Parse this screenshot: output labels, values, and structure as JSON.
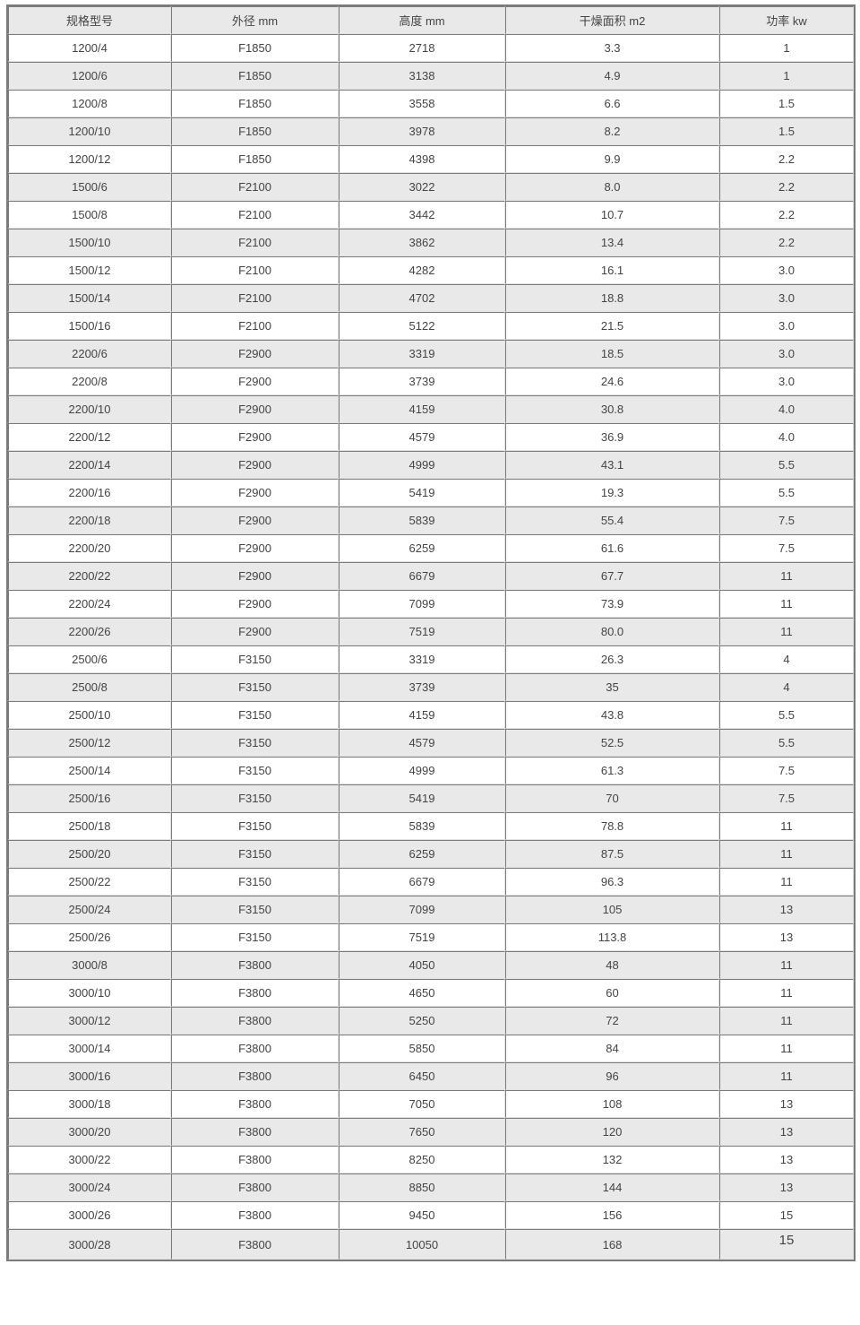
{
  "table": {
    "columns": [
      {
        "key": "model",
        "label": "规格型号"
      },
      {
        "key": "od",
        "label": "外径 mm"
      },
      {
        "key": "height",
        "label": "高度 mm"
      },
      {
        "key": "area",
        "label": "干燥面积 m2"
      },
      {
        "key": "power",
        "label": "功率 kw"
      }
    ],
    "rows": [
      [
        "1200/4",
        "F1850",
        "2718",
        "3.3",
        "1"
      ],
      [
        "1200/6",
        "F1850",
        "3138",
        "4.9",
        "1"
      ],
      [
        "1200/8",
        "F1850",
        "3558",
        "6.6",
        "1.5"
      ],
      [
        "1200/10",
        "F1850",
        "3978",
        "8.2",
        "1.5"
      ],
      [
        "1200/12",
        "F1850",
        "4398",
        "9.9",
        "2.2"
      ],
      [
        "1500/6",
        "F2100",
        "3022",
        "8.0",
        "2.2"
      ],
      [
        "1500/8",
        "F2100",
        "3442",
        "10.7",
        "2.2"
      ],
      [
        "1500/10",
        "F2100",
        "3862",
        "13.4",
        "2.2"
      ],
      [
        "1500/12",
        "F2100",
        "4282",
        "16.1",
        "3.0"
      ],
      [
        "1500/14",
        "F2100",
        "4702",
        "18.8",
        "3.0"
      ],
      [
        "1500/16",
        "F2100",
        "5122",
        "21.5",
        "3.0"
      ],
      [
        "2200/6",
        "F2900",
        "3319",
        "18.5",
        "3.0"
      ],
      [
        "2200/8",
        "F2900",
        "3739",
        "24.6",
        "3.0"
      ],
      [
        "2200/10",
        "F2900",
        "4159",
        "30.8",
        "4.0"
      ],
      [
        "2200/12",
        "F2900",
        "4579",
        "36.9",
        "4.0"
      ],
      [
        "2200/14",
        "F2900",
        "4999",
        "43.1",
        "5.5"
      ],
      [
        "2200/16",
        "F2900",
        "5419",
        "19.3",
        "5.5"
      ],
      [
        "2200/18",
        "F2900",
        "5839",
        "55.4",
        "7.5"
      ],
      [
        "2200/20",
        "F2900",
        "6259",
        "61.6",
        "7.5"
      ],
      [
        "2200/22",
        "F2900",
        "6679",
        "67.7",
        "11"
      ],
      [
        "2200/24",
        "F2900",
        "7099",
        "73.9",
        "11"
      ],
      [
        "2200/26",
        "F2900",
        "7519",
        "80.0",
        "11"
      ],
      [
        "2500/6",
        "F3150",
        "3319",
        "26.3",
        "4"
      ],
      [
        "2500/8",
        "F3150",
        "3739",
        "35",
        "4"
      ],
      [
        "2500/10",
        "F3150",
        "4159",
        "43.8",
        "5.5"
      ],
      [
        "2500/12",
        "F3150",
        "4579",
        "52.5",
        "5.5"
      ],
      [
        "2500/14",
        "F3150",
        "4999",
        "61.3",
        "7.5"
      ],
      [
        "2500/16",
        "F3150",
        "5419",
        "70",
        "7.5"
      ],
      [
        "2500/18",
        "F3150",
        "5839",
        "78.8",
        "11"
      ],
      [
        "2500/20",
        "F3150",
        "6259",
        "87.5",
        "11"
      ],
      [
        "2500/22",
        "F3150",
        "6679",
        "96.3",
        "11"
      ],
      [
        "2500/24",
        "F3150",
        "7099",
        "105",
        "13"
      ],
      [
        "2500/26",
        "F3150",
        "7519",
        "113.8",
        "13"
      ],
      [
        "3000/8",
        "F3800",
        "4050",
        "48",
        "11"
      ],
      [
        "3000/10",
        "F3800",
        "4650",
        "60",
        "11"
      ],
      [
        "3000/12",
        "F3800",
        "5250",
        "72",
        "11"
      ],
      [
        "3000/14",
        "F3800",
        "5850",
        "84",
        "11"
      ],
      [
        "3000/16",
        "F3800",
        "6450",
        "96",
        "11"
      ],
      [
        "3000/18",
        "F3800",
        "7050",
        "108",
        "13"
      ],
      [
        "3000/20",
        "F3800",
        "7650",
        "120",
        "13"
      ],
      [
        "3000/22",
        "F3800",
        "8250",
        "132",
        "13"
      ],
      [
        "3000/24",
        "F3800",
        "8850",
        "144",
        "13"
      ],
      [
        "3000/26",
        "F3800",
        "9450",
        "156",
        "15"
      ],
      [
        "3000/28",
        "F3800",
        "10050",
        "168",
        "15"
      ]
    ]
  },
  "colors": {
    "header_bg": "#e9e9e9",
    "alt_row_bg": "#e9e9e9",
    "border_dark": "#7b7b7b",
    "border_light": "#e2e2e2",
    "text": "#444444"
  }
}
